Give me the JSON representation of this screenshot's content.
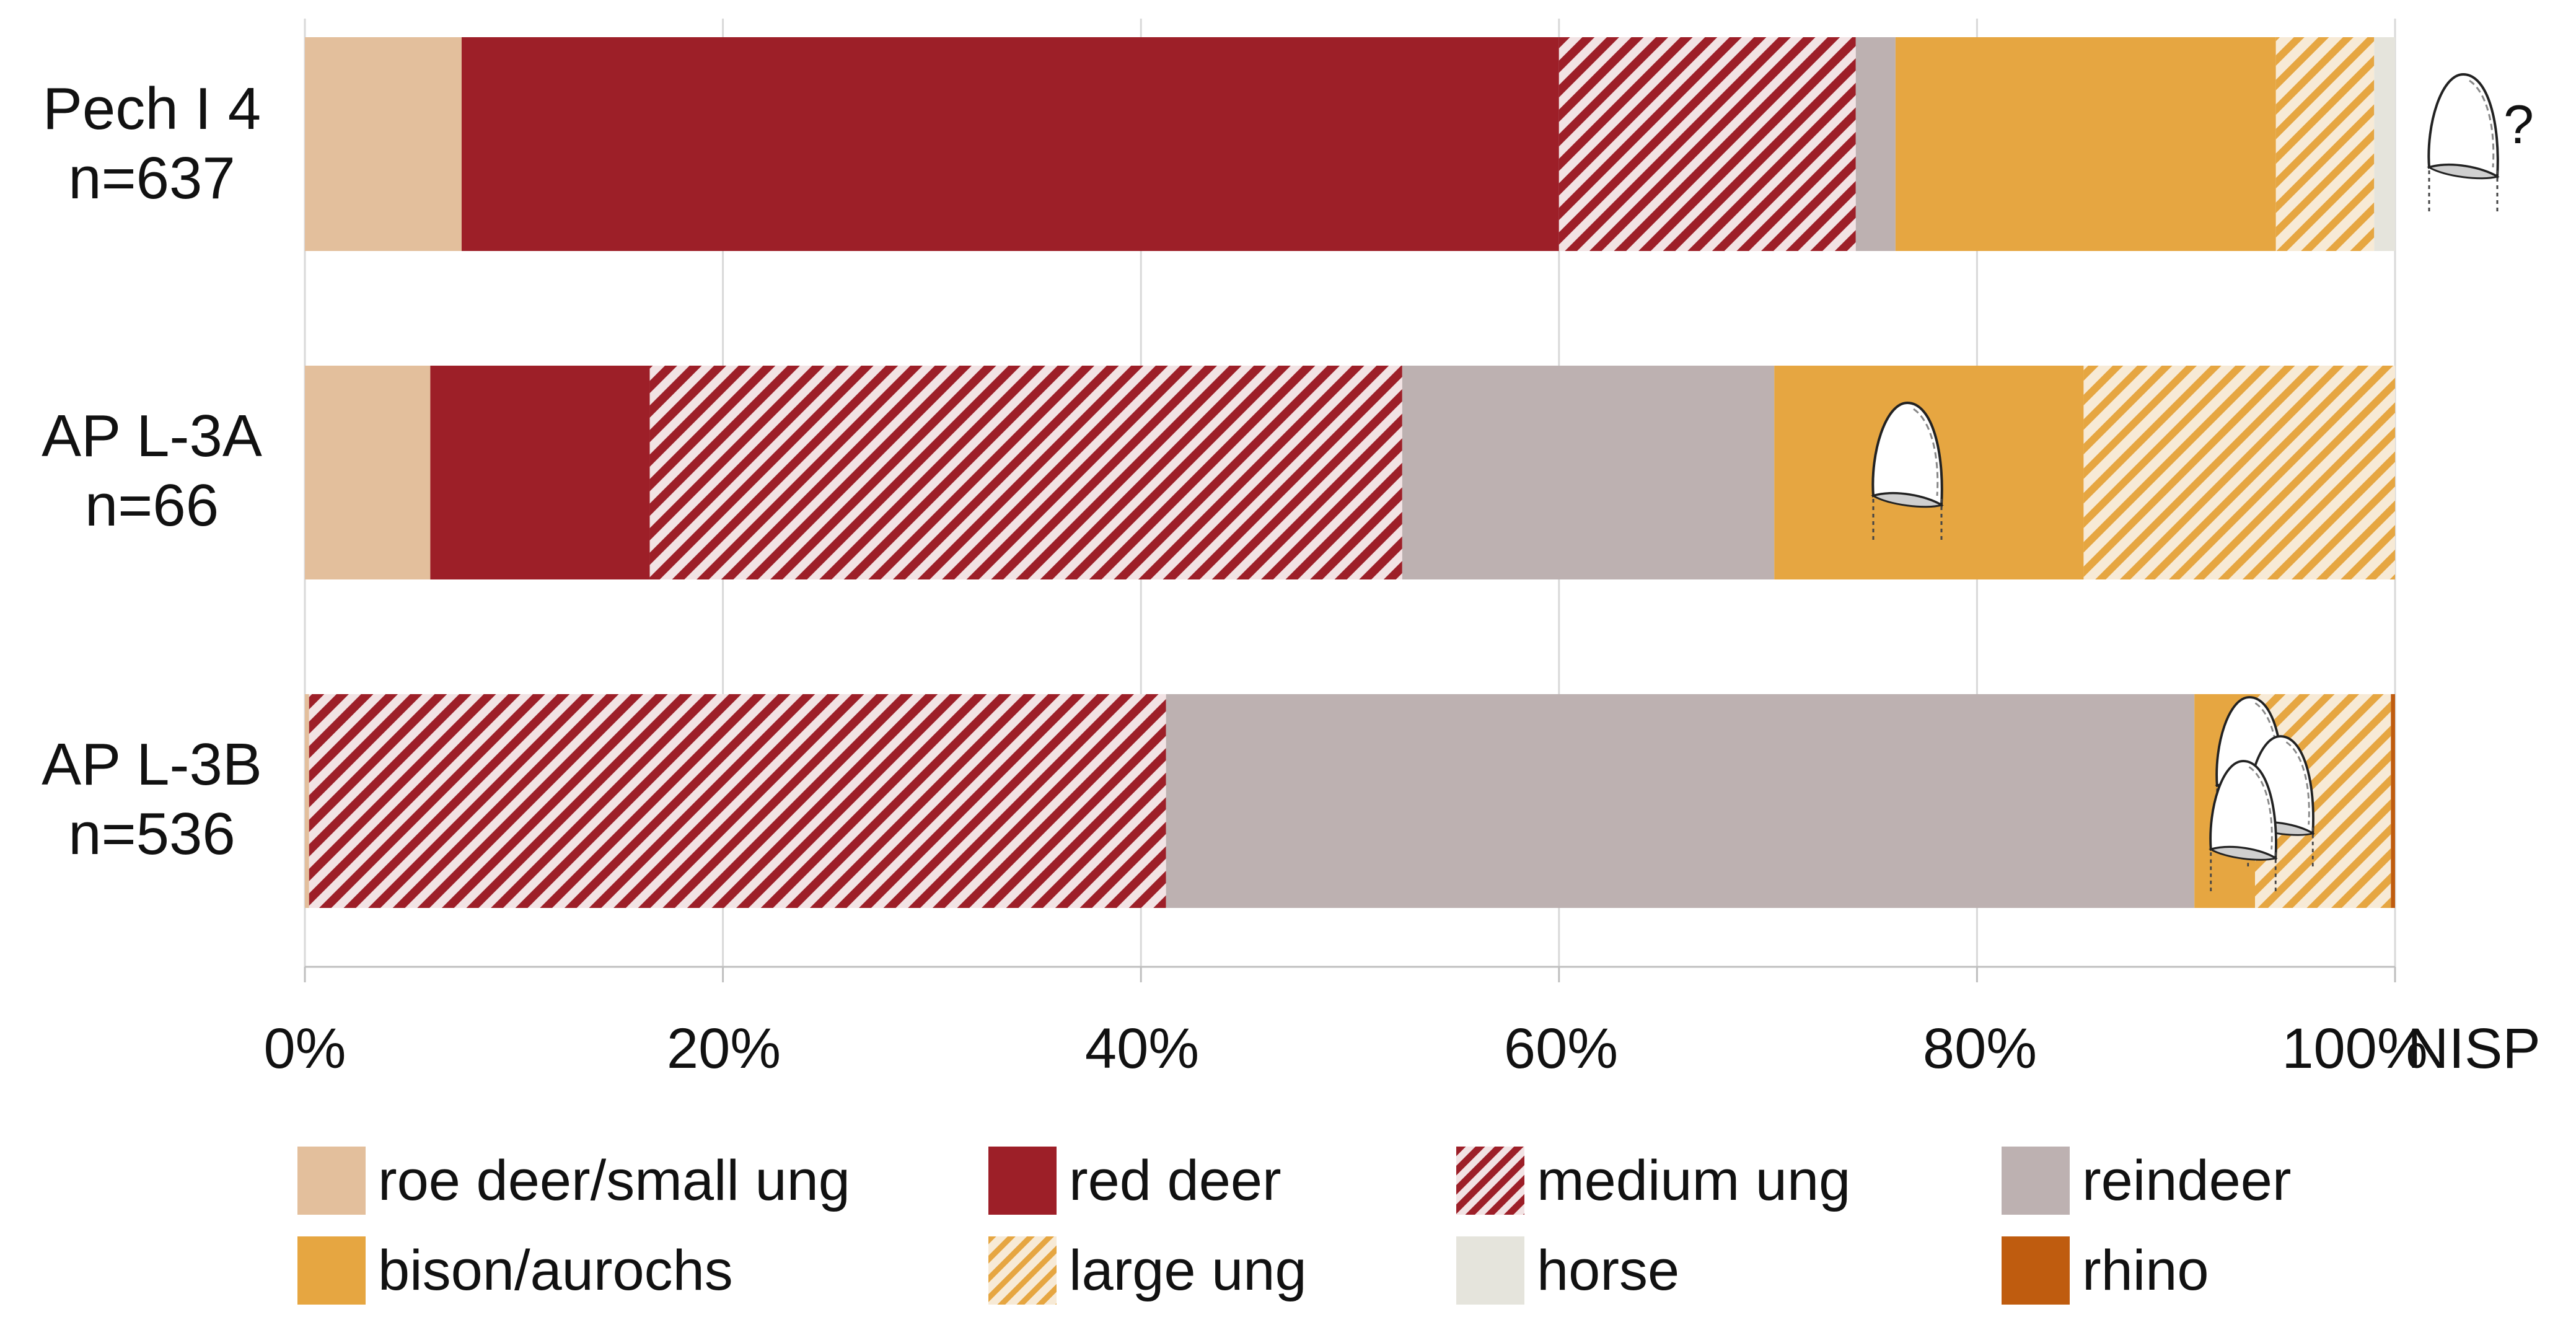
{
  "chart_data": {
    "type": "bar",
    "orientation": "horizontal",
    "stacked": true,
    "percent": true,
    "xlabel": "NISP",
    "x_ticks": [
      "0%",
      "20%",
      "40%",
      "60%",
      "80%",
      "100%"
    ],
    "xlim": [
      0,
      100
    ],
    "grid": "vertical",
    "legend_position": "bottom",
    "categories": [
      {
        "line1": "Pech I 4",
        "line2": "n=637"
      },
      {
        "line1": "AP L-3A",
        "line2": "n=66"
      },
      {
        "line1": "AP L-3B",
        "line2": "n=536"
      }
    ],
    "series": [
      {
        "name": "roe deer/small ung",
        "color": "#E3BF9C",
        "pattern": "solid",
        "values": [
          7.5,
          6.0,
          0.2
        ]
      },
      {
        "name": "red deer",
        "color": "#9D1F28",
        "pattern": "solid",
        "values": [
          52.5,
          10.5,
          0.0
        ]
      },
      {
        "name": "medium ung",
        "color": "#9D1F28",
        "pattern": "hatched",
        "values": [
          14.2,
          36.0,
          41.0
        ]
      },
      {
        "name": "reindeer",
        "color": "#BDB1B1",
        "pattern": "solid",
        "values": [
          1.9,
          17.8,
          49.2
        ]
      },
      {
        "name": "bison/aurochs",
        "color": "#E6A641",
        "pattern": "solid",
        "values": [
          18.2,
          14.8,
          2.9
        ]
      },
      {
        "name": "large ung",
        "color": "#E6A641",
        "pattern": "hatched",
        "values": [
          4.7,
          14.9,
          6.5
        ]
      },
      {
        "name": "horse",
        "color": "#E5E4DC",
        "pattern": "solid",
        "values": [
          1.0,
          0.0,
          0.0
        ]
      },
      {
        "name": "rhino",
        "color": "#BF5C0F",
        "pattern": "solid",
        "values": [
          0.0,
          0.0,
          0.2
        ]
      }
    ],
    "annotations": [
      {
        "category": "Pech I 4",
        "type": "tooth-icon",
        "count": 1,
        "question_mark": "?"
      },
      {
        "category": "AP L-3A",
        "type": "tooth-icon",
        "count": 1
      },
      {
        "category": "AP L-3B",
        "type": "tooth-icon",
        "count": 3
      }
    ]
  }
}
